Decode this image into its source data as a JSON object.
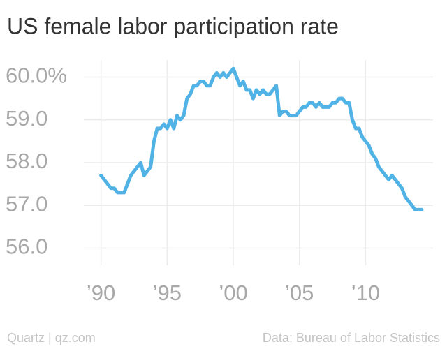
{
  "chart_data": {
    "type": "line",
    "title": "US female labor participation rate",
    "credit": "Quartz | qz.com",
    "source": "Data: Bureau of Labor Statistics",
    "x": [
      1990.0,
      1990.25,
      1990.5,
      1990.75,
      1991.0,
      1991.25,
      1991.5,
      1991.75,
      1992.0,
      1992.25,
      1992.5,
      1992.75,
      1993.0,
      1993.25,
      1993.5,
      1993.75,
      1994.0,
      1994.25,
      1994.5,
      1994.75,
      1995.0,
      1995.25,
      1995.5,
      1995.75,
      1996.0,
      1996.25,
      1996.5,
      1996.75,
      1997.0,
      1997.25,
      1997.5,
      1997.75,
      1998.0,
      1998.25,
      1998.5,
      1998.75,
      1999.0,
      1999.25,
      1999.5,
      1999.75,
      2000.0,
      2000.25,
      2000.5,
      2000.75,
      2001.0,
      2001.25,
      2001.5,
      2001.75,
      2002.0,
      2002.25,
      2002.5,
      2002.75,
      2003.0,
      2003.25,
      2003.5,
      2003.75,
      2004.0,
      2004.25,
      2004.5,
      2004.75,
      2005.0,
      2005.25,
      2005.5,
      2005.75,
      2006.0,
      2006.25,
      2006.5,
      2006.75,
      2007.0,
      2007.25,
      2007.5,
      2007.75,
      2008.0,
      2008.25,
      2008.5,
      2008.75,
      2009.0,
      2009.25,
      2009.5,
      2009.75,
      2010.0,
      2010.25,
      2010.5,
      2010.75,
      2011.0,
      2011.25,
      2011.5,
      2011.75,
      2012.0,
      2012.25,
      2012.5,
      2012.75,
      2013.0,
      2013.25,
      2013.5,
      2013.75,
      2014.0,
      2014.25
    ],
    "series": [
      {
        "color": "#51b2e5",
        "values": [
          57.7,
          57.6,
          57.5,
          57.4,
          57.4,
          57.3,
          57.3,
          57.3,
          57.5,
          57.7,
          57.8,
          57.9,
          58.0,
          57.7,
          57.8,
          57.9,
          58.5,
          58.8,
          58.8,
          58.9,
          58.8,
          59.0,
          58.8,
          59.1,
          59.0,
          59.1,
          59.5,
          59.6,
          59.8,
          59.8,
          59.9,
          59.9,
          59.8,
          59.8,
          60.0,
          60.1,
          60.0,
          60.1,
          60.0,
          60.1,
          60.2,
          60.0,
          59.8,
          59.9,
          59.7,
          59.7,
          59.5,
          59.7,
          59.6,
          59.7,
          59.6,
          59.6,
          59.7,
          59.8,
          59.1,
          59.2,
          59.2,
          59.1,
          59.1,
          59.1,
          59.2,
          59.3,
          59.3,
          59.4,
          59.4,
          59.3,
          59.4,
          59.3,
          59.3,
          59.3,
          59.4,
          59.4,
          59.5,
          59.5,
          59.4,
          59.4,
          59.0,
          58.8,
          58.8,
          58.6,
          58.5,
          58.4,
          58.2,
          58.1,
          57.9,
          57.8,
          57.7,
          57.6,
          57.7,
          57.6,
          57.5,
          57.4,
          57.2,
          57.1,
          57.0,
          56.9,
          56.9,
          56.9
        ]
      }
    ],
    "xlim": [
      1988.7,
      2015.1
    ],
    "xticks": [
      {
        "value": 1990,
        "label": "’90"
      },
      {
        "value": 1995,
        "label": "’95"
      },
      {
        "value": 2000,
        "label": "’00"
      },
      {
        "value": 2005,
        "label": "’05"
      },
      {
        "value": 2010,
        "label": "’10"
      }
    ],
    "ylim": [
      55.6,
      60.4
    ],
    "yticks": [
      {
        "value": 56,
        "label": "56.0"
      },
      {
        "value": 57,
        "label": "57.0"
      },
      {
        "value": 58,
        "label": "58.0"
      },
      {
        "value": 59,
        "label": "59.0"
      },
      {
        "value": 60,
        "label": "60.0%"
      }
    ],
    "grid": true
  }
}
